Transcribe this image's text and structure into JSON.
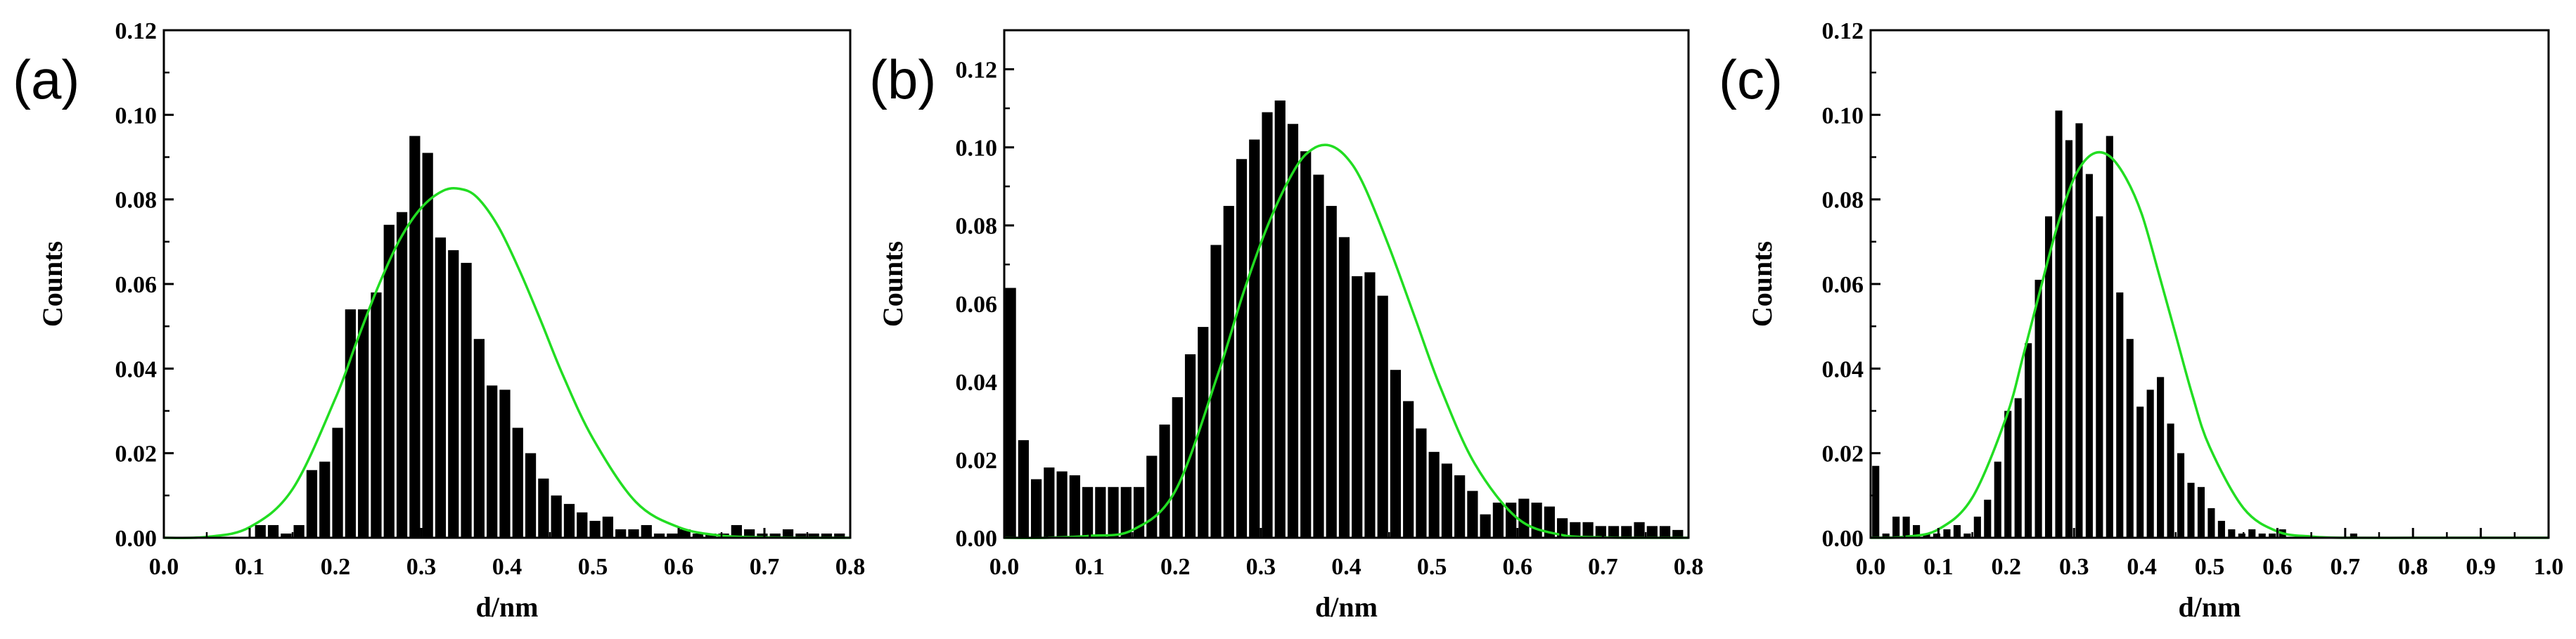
{
  "chart_data": [
    {
      "type": "bar",
      "panel_label": "(a)",
      "xlabel": "d/nm",
      "ylabel": "Counts",
      "xlim": [
        0.0,
        0.8
      ],
      "ylim": [
        0.0,
        0.12
      ],
      "xticks": [
        "0.0",
        "0.1",
        "0.2",
        "0.3",
        "0.4",
        "0.5",
        "0.6",
        "0.7",
        "0.8"
      ],
      "yticks": [
        "0.00",
        "0.02",
        "0.04",
        "0.06",
        "0.08",
        "0.10",
        "0.12"
      ],
      "bar_width": 0.0125,
      "bar_color": "#000000",
      "grid": false,
      "series": [
        {
          "type": "bar",
          "x": [
            0.1125,
            0.1275,
            0.1425,
            0.1575,
            0.1725,
            0.1875,
            0.2025,
            0.2175,
            0.2325,
            0.2475,
            0.2625,
            0.2775,
            0.2925,
            0.3075,
            0.3225,
            0.3375,
            0.3525,
            0.3675,
            0.3825,
            0.3975,
            0.4125,
            0.4275,
            0.4425,
            0.4575,
            0.4725,
            0.4875,
            0.5025,
            0.5175,
            0.5325,
            0.5475,
            0.5625,
            0.5775,
            0.5925,
            0.6075,
            0.6225,
            0.6375,
            0.6525,
            0.6675,
            0.6825,
            0.6975,
            0.7125,
            0.7275,
            0.7425,
            0.7575,
            0.7725,
            0.7875
          ],
          "values": [
            0.003,
            0.003,
            0.001,
            0.003,
            0.016,
            0.018,
            0.026,
            0.054,
            0.054,
            0.058,
            0.074,
            0.077,
            0.095,
            0.091,
            0.071,
            0.068,
            0.065,
            0.047,
            0.036,
            0.035,
            0.026,
            0.02,
            0.014,
            0.01,
            0.008,
            0.006,
            0.004,
            0.005,
            0.002,
            0.002,
            0.003,
            0.001,
            0.001,
            0.002,
            0.001,
            0.001,
            0.001,
            0.003,
            0.002,
            0.001,
            0.001,
            0.002,
            0.001,
            0.001,
            0.001,
            0.001
          ]
        },
        {
          "type": "line",
          "x": [
            0.0,
            0.05,
            0.1,
            0.15,
            0.2,
            0.225,
            0.25,
            0.275,
            0.3,
            0.325,
            0.345,
            0.365,
            0.39,
            0.415,
            0.44,
            0.465,
            0.5,
            0.55,
            0.6,
            0.65,
            0.7,
            0.75,
            0.8
          ],
          "values": [
            0.0,
            0.0002,
            0.0025,
            0.0115,
            0.033,
            0.0465,
            0.0595,
            0.0705,
            0.078,
            0.082,
            0.0825,
            0.0805,
            0.0735,
            0.063,
            0.051,
            0.0385,
            0.0235,
            0.0085,
            0.0025,
            0.0005,
            0.0001,
            0.0,
            0.0
          ],
          "color": "#22dd22"
        }
      ]
    },
    {
      "type": "bar",
      "panel_label": "(b)",
      "xlabel": "d/nm",
      "ylabel": "Counts",
      "xlim": [
        0.0,
        0.8
      ],
      "ylim": [
        0.0,
        0.13
      ],
      "xticks": [
        "0.0",
        "0.1",
        "0.2",
        "0.3",
        "0.4",
        "0.5",
        "0.6",
        "0.7",
        "0.8"
      ],
      "yticks": [
        "0.00",
        "0.02",
        "0.04",
        "0.06",
        "0.08",
        "0.10",
        "0.12"
      ],
      "bar_width": 0.0125,
      "bar_color": "#000000",
      "grid": false,
      "series": [
        {
          "type": "bar",
          "x": [
            0.0075,
            0.0225,
            0.0375,
            0.0525,
            0.0675,
            0.0825,
            0.0975,
            0.1125,
            0.1275,
            0.1425,
            0.1575,
            0.1725,
            0.1875,
            0.2025,
            0.2175,
            0.2325,
            0.2475,
            0.2625,
            0.2775,
            0.2925,
            0.3075,
            0.3225,
            0.3375,
            0.3525,
            0.3675,
            0.3825,
            0.3975,
            0.4125,
            0.4275,
            0.4425,
            0.4575,
            0.4725,
            0.4875,
            0.5025,
            0.5175,
            0.5325,
            0.5475,
            0.5625,
            0.5775,
            0.5925,
            0.6075,
            0.6225,
            0.6375,
            0.6525,
            0.6675,
            0.6825,
            0.6975,
            0.7125,
            0.7275,
            0.7425,
            0.7575,
            0.7725,
            0.7875
          ],
          "values": [
            0.064,
            0.025,
            0.015,
            0.018,
            0.017,
            0.016,
            0.013,
            0.013,
            0.013,
            0.013,
            0.013,
            0.021,
            0.029,
            0.036,
            0.047,
            0.054,
            0.075,
            0.085,
            0.097,
            0.102,
            0.109,
            0.112,
            0.106,
            0.099,
            0.093,
            0.085,
            0.077,
            0.067,
            0.068,
            0.062,
            0.043,
            0.035,
            0.028,
            0.022,
            0.019,
            0.016,
            0.012,
            0.006,
            0.009,
            0.009,
            0.01,
            0.009,
            0.008,
            0.005,
            0.004,
            0.004,
            0.003,
            0.003,
            0.003,
            0.004,
            0.003,
            0.003,
            0.002
          ]
        },
        {
          "type": "line",
          "x": [
            0.0,
            0.05,
            0.1,
            0.15,
            0.2,
            0.25,
            0.28,
            0.31,
            0.34,
            0.36,
            0.38,
            0.4,
            0.42,
            0.45,
            0.48,
            0.51,
            0.55,
            0.6,
            0.65,
            0.7,
            0.75,
            0.8
          ],
          "values": [
            0.0,
            0.0,
            0.0005,
            0.002,
            0.012,
            0.042,
            0.063,
            0.081,
            0.0945,
            0.0995,
            0.1005,
            0.0975,
            0.0905,
            0.0745,
            0.0565,
            0.0385,
            0.019,
            0.005,
            0.0008,
            0.0001,
            0.0,
            0.0
          ],
          "color": "#22dd22"
        }
      ]
    },
    {
      "type": "bar",
      "panel_label": "(c)",
      "xlabel": "d/nm",
      "ylabel": "Counts",
      "xlim": [
        0.0,
        1.0
      ],
      "ylim": [
        0.0,
        0.12
      ],
      "xticks": [
        "0.0",
        "0.1",
        "0.2",
        "0.3",
        "0.4",
        "0.5",
        "0.6",
        "0.7",
        "0.8",
        "0.9",
        "1.0"
      ],
      "yticks": [
        "0.00",
        "0.02",
        "0.04",
        "0.06",
        "0.08",
        "0.10",
        "0.12"
      ],
      "bar_width": 0.0105,
      "bar_color": "#000000",
      "grid": false,
      "series": [
        {
          "type": "bar",
          "x": [
            0.0075,
            0.0225,
            0.0375,
            0.0525,
            0.0675,
            0.0825,
            0.0975,
            0.1125,
            0.1275,
            0.1425,
            0.1575,
            0.1725,
            0.1875,
            0.2025,
            0.2175,
            0.2325,
            0.2475,
            0.2625,
            0.2775,
            0.2925,
            0.3075,
            0.3225,
            0.3375,
            0.3525,
            0.3675,
            0.3825,
            0.3975,
            0.4125,
            0.4275,
            0.4425,
            0.4575,
            0.4725,
            0.4875,
            0.5025,
            0.5175,
            0.5325,
            0.5475,
            0.5625,
            0.5775,
            0.5925,
            0.6075,
            0.7125
          ],
          "values": [
            0.017,
            0.001,
            0.005,
            0.005,
            0.003,
            0.001,
            0.001,
            0.002,
            0.003,
            0.001,
            0.005,
            0.009,
            0.018,
            0.03,
            0.033,
            0.046,
            0.061,
            0.076,
            0.101,
            0.094,
            0.098,
            0.086,
            0.076,
            0.095,
            0.058,
            0.047,
            0.031,
            0.035,
            0.038,
            0.027,
            0.02,
            0.013,
            0.012,
            0.007,
            0.004,
            0.002,
            0.001,
            0.002,
            0.001,
            0.001,
            0.002,
            0.001
          ]
        },
        {
          "type": "line",
          "x": [
            0.0,
            0.05,
            0.1,
            0.15,
            0.2,
            0.225,
            0.25,
            0.275,
            0.3,
            0.325,
            0.35,
            0.375,
            0.4,
            0.425,
            0.45,
            0.475,
            0.5,
            0.55,
            0.6,
            0.65,
            0.7,
            0.8,
            0.9,
            1.0
          ],
          "values": [
            0.0,
            0.0002,
            0.002,
            0.0095,
            0.0285,
            0.043,
            0.0585,
            0.0735,
            0.085,
            0.0905,
            0.0905,
            0.0855,
            0.0765,
            0.0625,
            0.048,
            0.0335,
            0.0215,
            0.007,
            0.0015,
            0.0003,
            0.0,
            0.0,
            0.0,
            0.0
          ],
          "color": "#22dd22"
        }
      ]
    }
  ]
}
